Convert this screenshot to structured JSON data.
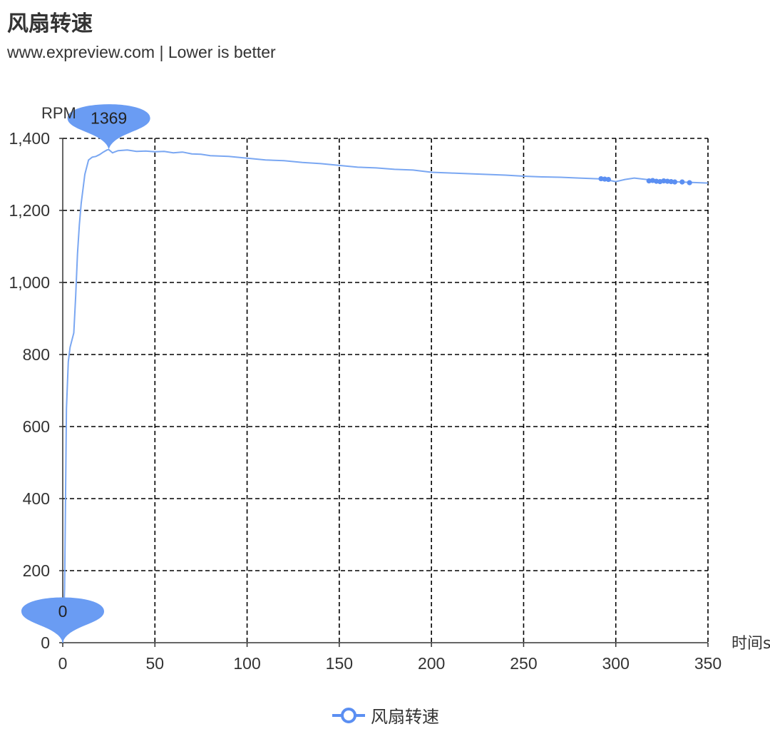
{
  "title": "风扇转速",
  "subtitle": "www.expreview.com  | Lower is better",
  "legend_label": "风扇转速",
  "colors": {
    "line": "#7aa7f2",
    "marker": "#5b8ff2",
    "pin": "#6a9cf3",
    "axis": "#333333",
    "grid": "#000000",
    "text": "#333333"
  },
  "chart_data": {
    "type": "line",
    "title": "风扇转速",
    "subtitle": "www.expreview.com  | Lower is better",
    "xlabel": "时间s",
    "ylabel": "RPM",
    "xlim": [
      0,
      350
    ],
    "ylim": [
      0,
      1400
    ],
    "xticks": [
      0,
      50,
      100,
      150,
      200,
      250,
      300,
      350
    ],
    "yticks": [
      0,
      200,
      400,
      600,
      800,
      1000,
      1200,
      1400
    ],
    "xtick_labels": [
      "0",
      "50",
      "100",
      "150",
      "200",
      "250",
      "300",
      "350"
    ],
    "ytick_labels": [
      "0",
      "200",
      "400",
      "600",
      "800",
      "1,000",
      "1,200",
      "1,400"
    ],
    "grid": true,
    "grid_style": "dashed",
    "legend_position": "bottom",
    "series": [
      {
        "name": "风扇转速",
        "x": [
          0,
          1,
          2,
          3,
          4,
          5,
          6,
          7,
          8,
          9,
          10,
          12,
          14,
          16,
          18,
          20,
          22,
          24,
          25,
          27,
          30,
          35,
          40,
          45,
          50,
          55,
          60,
          65,
          70,
          75,
          80,
          90,
          100,
          110,
          120,
          130,
          140,
          150,
          160,
          170,
          180,
          190,
          200,
          210,
          220,
          230,
          240,
          250,
          260,
          270,
          280,
          290,
          293,
          300,
          305,
          310,
          320,
          325,
          330,
          335,
          340,
          350
        ],
        "y": [
          0,
          150,
          650,
          780,
          820,
          840,
          860,
          960,
          1080,
          1160,
          1220,
          1300,
          1340,
          1348,
          1350,
          1355,
          1362,
          1368,
          1369,
          1360,
          1366,
          1368,
          1364,
          1365,
          1363,
          1364,
          1360,
          1362,
          1357,
          1356,
          1352,
          1350,
          1345,
          1340,
          1338,
          1333,
          1330,
          1325,
          1320,
          1318,
          1314,
          1312,
          1306,
          1304,
          1302,
          1300,
          1298,
          1295,
          1293,
          1292,
          1290,
          1288,
          1287,
          1280,
          1286,
          1290,
          1284,
          1282,
          1280,
          1279,
          1278,
          1276
        ]
      }
    ],
    "scatter_points": {
      "x": [
        292,
        294,
        296,
        318,
        320,
        322,
        324,
        326,
        328,
        330,
        332,
        336,
        340
      ],
      "y": [
        1288,
        1287,
        1286,
        1282,
        1283,
        1281,
        1280,
        1282,
        1281,
        1280,
        1279,
        1279,
        1277
      ]
    },
    "annotations": [
      {
        "label": "1369",
        "x": 25,
        "y": 1369
      },
      {
        "label": "0",
        "x": 0,
        "y": 0
      }
    ]
  }
}
